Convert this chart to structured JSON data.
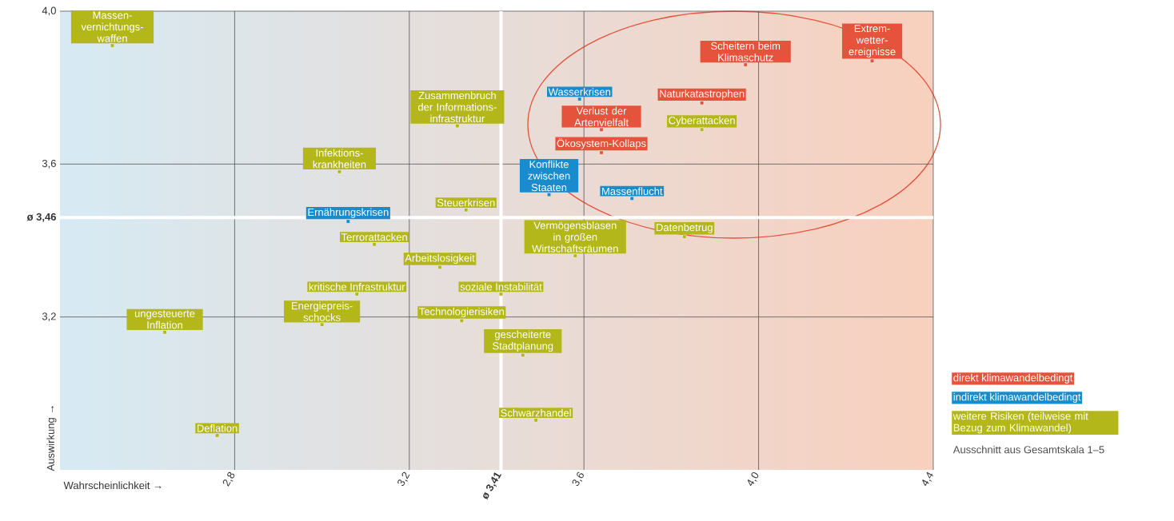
{
  "chart_data": {
    "type": "scatter",
    "xlabel": "Wahrscheinlichkeit →",
    "ylabel": "Auswirkung →",
    "xlim": [
      2.4,
      4.4
    ],
    "ylim": [
      2.8,
      4.0
    ],
    "xticks": [
      {
        "value": 2.8,
        "label": "2,8"
      },
      {
        "value": 3.2,
        "label": "3,2"
      },
      {
        "value": 3.6,
        "label": "3,6"
      },
      {
        "value": 4.0,
        "label": "4,0"
      },
      {
        "value": 4.4,
        "label": "4,4"
      }
    ],
    "yticks": [
      {
        "value": 3.2,
        "label": "3,2"
      },
      {
        "value": 3.6,
        "label": "3,6"
      },
      {
        "value": 4.0,
        "label": "4,0"
      }
    ],
    "grid": true,
    "legend": "right",
    "marker": "square",
    "ref_lines": [
      {
        "axis": "x",
        "value": 3.41,
        "label": "ø 3,41",
        "color": "#ffffff"
      },
      {
        "axis": "y",
        "value": 3.46,
        "label": "ø 3,46",
        "color": "#ffffff"
      }
    ],
    "annotations": [
      "Ausschnitt aus Gesamtskala 1–5"
    ],
    "series": [
      {
        "name": "direkt klimawandelbedingt",
        "color": "#e5533c",
        "x": [
          3.97,
          4.26,
          3.87,
          3.64,
          3.64
        ],
        "values": [
          3.86,
          3.87,
          3.76,
          3.69,
          3.63
        ],
        "value_labels": [
          "Scheitern beim Klimaschutz",
          "Extrem-wetter-ereignisse",
          "Naturkatastrophen",
          "Verlust der Artenvielfalt",
          "Ökosystem-Kollaps"
        ]
      },
      {
        "name": "indirekt klimawandelbedingt",
        "color": "#1a8ccc",
        "x": [
          3.59,
          3.52,
          3.71,
          3.06
        ],
        "values": [
          3.77,
          3.52,
          3.51,
          3.45
        ],
        "value_labels": [
          "Wasserkrisen",
          "Konflikte zwischen Staaten",
          "Massenflucht",
          "Ernährungskrisen"
        ]
      },
      {
        "name": "weitere Risiken (teilweise mit Bezug zum Klimawandel)",
        "color": "#b3b71a",
        "x": [
          2.52,
          3.31,
          3.87,
          3.04,
          3.33,
          3.58,
          3.83,
          3.12,
          3.27,
          3.08,
          3.41,
          3.0,
          3.32,
          2.64,
          3.46,
          3.49,
          2.76
        ],
        "values": [
          3.91,
          3.7,
          3.69,
          3.58,
          3.48,
          3.36,
          3.41,
          3.39,
          3.33,
          3.26,
          3.26,
          3.18,
          3.19,
          3.16,
          3.1,
          2.93,
          2.89
        ],
        "value_labels": [
          "Massen-vernichtungs-waffen",
          "Zusammenbruch der Informations-infrastruktur",
          "Cyberattacken",
          "Infektions-krankheiten",
          "Steuerkrisen",
          "Vermögensblasen in großen Wirtschaftsräumen",
          "Datenbetrug",
          "Terrorattacken",
          "Arbeitslosigkeit",
          "kritische Infrastruktur",
          "soziale Instabilität",
          "Energiepreis-schocks",
          "Technologierisiken",
          "ungesteuerte Inflation",
          "gescheiterte Stadtplanung",
          "Schwarzhandel",
          "Deflation"
        ]
      }
    ]
  }
}
